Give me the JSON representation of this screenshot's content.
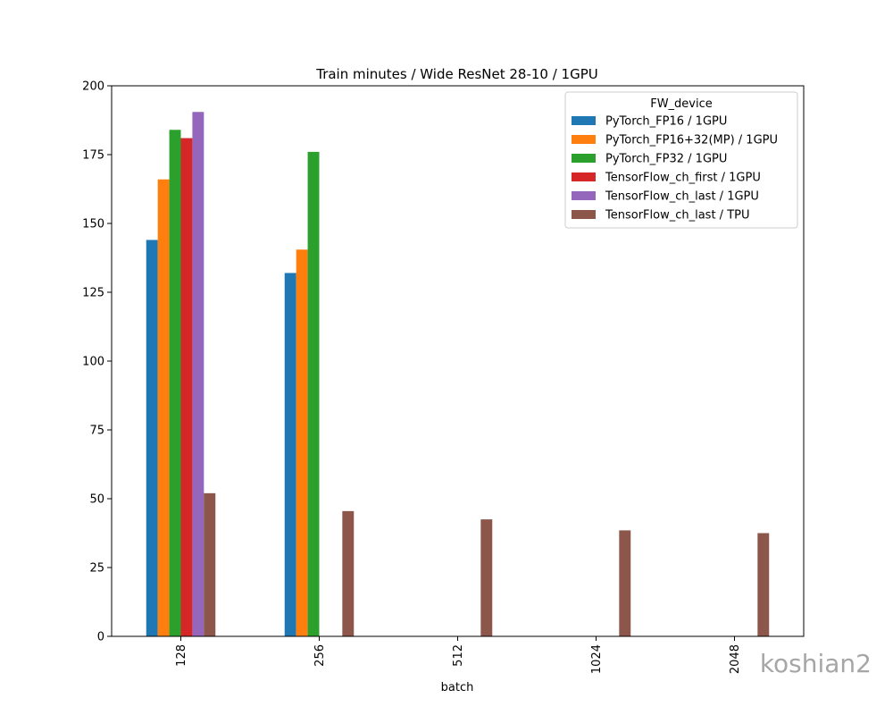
{
  "chart_data": {
    "type": "bar",
    "title": "Train minutes / Wide ResNet 28-10 / 1GPU",
    "xlabel": "batch",
    "ylabel": "",
    "categories": [
      "128",
      "256",
      "512",
      "1024",
      "2048"
    ],
    "ylim": [
      0,
      200
    ],
    "yticks": [
      0,
      25,
      50,
      75,
      100,
      125,
      150,
      175,
      200
    ],
    "grid": false,
    "legend_title": "FW_device",
    "legend_position": "top-right",
    "series": [
      {
        "name": "PyTorch_FP16 / 1GPU",
        "color": "#1f77b4",
        "values": [
          144,
          132,
          null,
          null,
          null
        ]
      },
      {
        "name": "PyTorch_FP16+32(MP) / 1GPU",
        "color": "#ff7f0e",
        "values": [
          166,
          140.5,
          null,
          null,
          null
        ]
      },
      {
        "name": "PyTorch_FP32 / 1GPU",
        "color": "#2ca02c",
        "values": [
          184,
          176,
          null,
          null,
          null
        ]
      },
      {
        "name": "TensorFlow_ch_first / 1GPU",
        "color": "#d62728",
        "values": [
          181,
          null,
          null,
          null,
          null
        ]
      },
      {
        "name": "TensorFlow_ch_last / 1GPU",
        "color": "#9467bd",
        "values": [
          190.5,
          null,
          null,
          null,
          null
        ]
      },
      {
        "name": "TensorFlow_ch_last / TPU",
        "color": "#8c564b",
        "values": [
          52,
          45.5,
          42.5,
          38.5,
          37.5
        ]
      }
    ]
  },
  "watermark": "koshian2"
}
